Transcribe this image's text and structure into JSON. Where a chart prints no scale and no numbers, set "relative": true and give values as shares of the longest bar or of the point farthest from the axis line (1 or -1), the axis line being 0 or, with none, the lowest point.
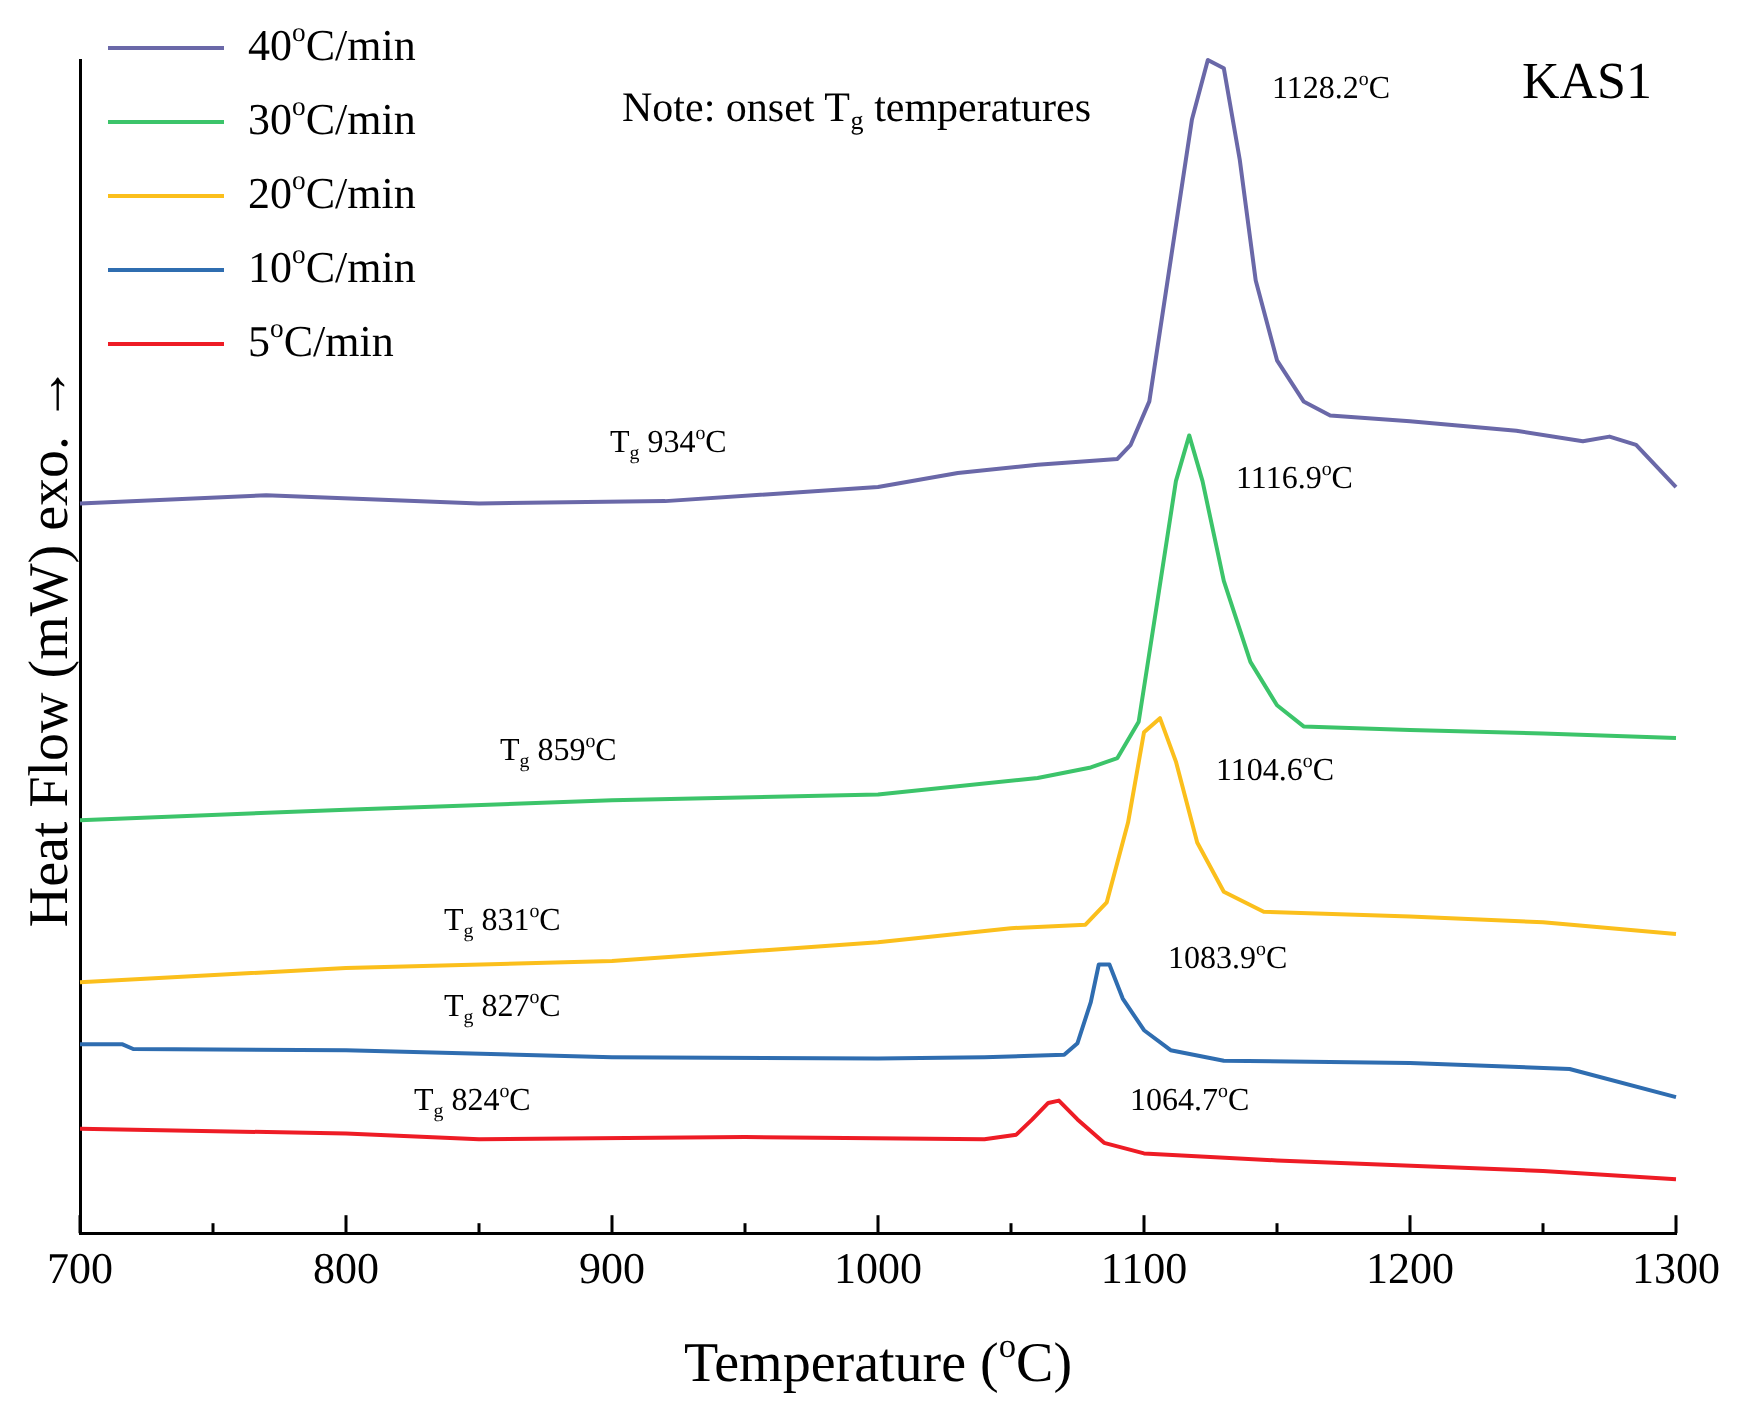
{
  "chart_data": {
    "type": "line",
    "relative": true,
    "xlabel": "Temperature ($^{o}$C)",
    "ylabel": "Heat Flow (mW) exo. →",
    "legend": "top left",
    "grid": false,
    "marker": "none",
    "line_style": "solid",
    "xlim": [
      700,
      1300
    ],
    "xticks": [
      700,
      {
        "value": 750,
        "label": null
      },
      800,
      {
        "value": 850,
        "label": null
      },
      900,
      {
        "value": 950,
        "label": null
      },
      1000,
      {
        "value": 1050,
        "label": null
      },
      1100,
      {
        "value": 1150,
        "label": null
      },
      1200,
      {
        "value": 1250,
        "label": null
      },
      1300
    ],
    "series": [
      {
        "name": "40$^{o}$C/min",
        "color": "#6a68a8",
        "x": [
          700,
          770,
          850,
          920,
          1000,
          1030,
          1060,
          1090,
          1095,
          1102,
          1110,
          1118,
          1124,
          1130,
          1136,
          1142,
          1150,
          1160,
          1170,
          1200,
          1240,
          1265,
          1275,
          1285,
          1300
        ],
        "values": [
          0.622,
          0.629,
          0.622,
          0.624,
          0.636,
          0.648,
          0.655,
          0.66,
          0.672,
          0.709,
          0.829,
          0.949,
          1,
          0.993,
          0.915,
          0.812,
          0.744,
          0.709,
          0.697,
          0.692,
          0.684,
          0.675,
          0.679,
          0.672,
          0.636
        ]
      },
      {
        "name": "30$^{o}$C/min",
        "color": "#3cc46a",
        "x": [
          700,
          800,
          900,
          1000,
          1060,
          1080,
          1090,
          1098,
          1105,
          1112,
          1117,
          1122,
          1130,
          1140,
          1150,
          1160,
          1200,
          1250,
          1300
        ],
        "values": [
          0.352,
          0.361,
          0.369,
          0.374,
          0.388,
          0.397,
          0.405,
          0.436,
          0.538,
          0.641,
          0.68,
          0.641,
          0.556,
          0.487,
          0.45,
          0.432,
          0.429,
          0.426,
          0.422
        ]
      },
      {
        "name": "20$^{o}$C/min",
        "color": "#fbbf1c",
        "x": [
          700,
          800,
          900,
          1000,
          1050,
          1078,
          1086,
          1094,
          1100,
          1106,
          1112,
          1120,
          1130,
          1145,
          1200,
          1250,
          1300
        ],
        "values": [
          0.214,
          0.226,
          0.232,
          0.248,
          0.26,
          0.263,
          0.282,
          0.35,
          0.427,
          0.439,
          0.402,
          0.333,
          0.291,
          0.274,
          0.27,
          0.265,
          0.255
        ]
      },
      {
        "name": "10$^{o}$C/min",
        "color": "#2f6db0",
        "x": [
          700,
          716,
          720,
          800,
          900,
          1000,
          1040,
          1070,
          1075,
          1080,
          1083,
          1087,
          1092,
          1100,
          1110,
          1130,
          1200,
          1260,
          1300
        ],
        "values": [
          0.161,
          0.161,
          0.157,
          0.156,
          0.15,
          0.149,
          0.15,
          0.152,
          0.162,
          0.197,
          0.229,
          0.229,
          0.2,
          0.173,
          0.156,
          0.147,
          0.145,
          0.14,
          0.116
        ]
      },
      {
        "name": "5$^{o}$C/min",
        "color": "#ee1c25",
        "x": [
          700,
          800,
          850,
          950,
          1040,
          1052,
          1058,
          1064,
          1068,
          1075,
          1085,
          1100,
          1150,
          1250,
          1300
        ],
        "values": [
          0.089,
          0.085,
          0.08,
          0.082,
          0.08,
          0.084,
          0.097,
          0.111,
          0.113,
          0.097,
          0.077,
          0.068,
          0.062,
          0.053,
          0.046
        ]
      }
    ],
    "annotations": [
      "Note: onset T$_{g}$ temperatures",
      "KAS1",
      "1128.2$^{o}$C",
      "1116.9$^{o}$C",
      "1104.6$^{o}$C",
      "1083.9$^{o}$C",
      "1064.7$^{o}$C",
      "T$_{g}$ 934$^{o}$C",
      "T$_{g}$ 859$^{o}$C",
      "T$_{g}$ 831$^{o}$C",
      "T$_{g}$ 827$^{o}$C",
      "T$_{g}$ 824$^{o}$C"
    ]
  }
}
